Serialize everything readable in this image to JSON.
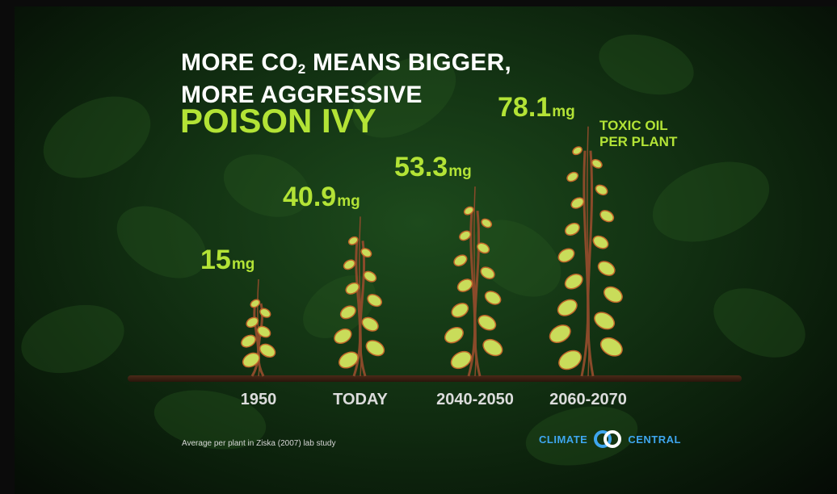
{
  "title": {
    "line1_pre": "MORE CO",
    "line1_sub": "2",
    "line1_post": " MEANS BIGGER,",
    "line2": "MORE AGGRESSIVE",
    "accent": "POISON IVY"
  },
  "chart_data": {
    "type": "bar",
    "title": "MORE CO2 MEANS BIGGER, MORE AGGRESSIVE POISON IVY",
    "categories": [
      "1950",
      "TODAY",
      "2040-2050",
      "2060-2070"
    ],
    "values": [
      15,
      40.9,
      53.3,
      78.1
    ],
    "value_labels": [
      "15",
      "40.9",
      "53.3",
      "78.1"
    ],
    "unit": "mg",
    "series_note": "TOXIC OIL PER PLANT",
    "ylabel": "",
    "xlabel": ""
  },
  "source_note": "Average per plant in Ziska (2007) lab study",
  "logo": {
    "left": "CLIMATE",
    "right": "CENTRAL"
  },
  "colors": {
    "accent": "#b3e336",
    "leaf": "#c9dc5a",
    "stem": "#8a4a2a",
    "logo": "#3ea6ef"
  }
}
